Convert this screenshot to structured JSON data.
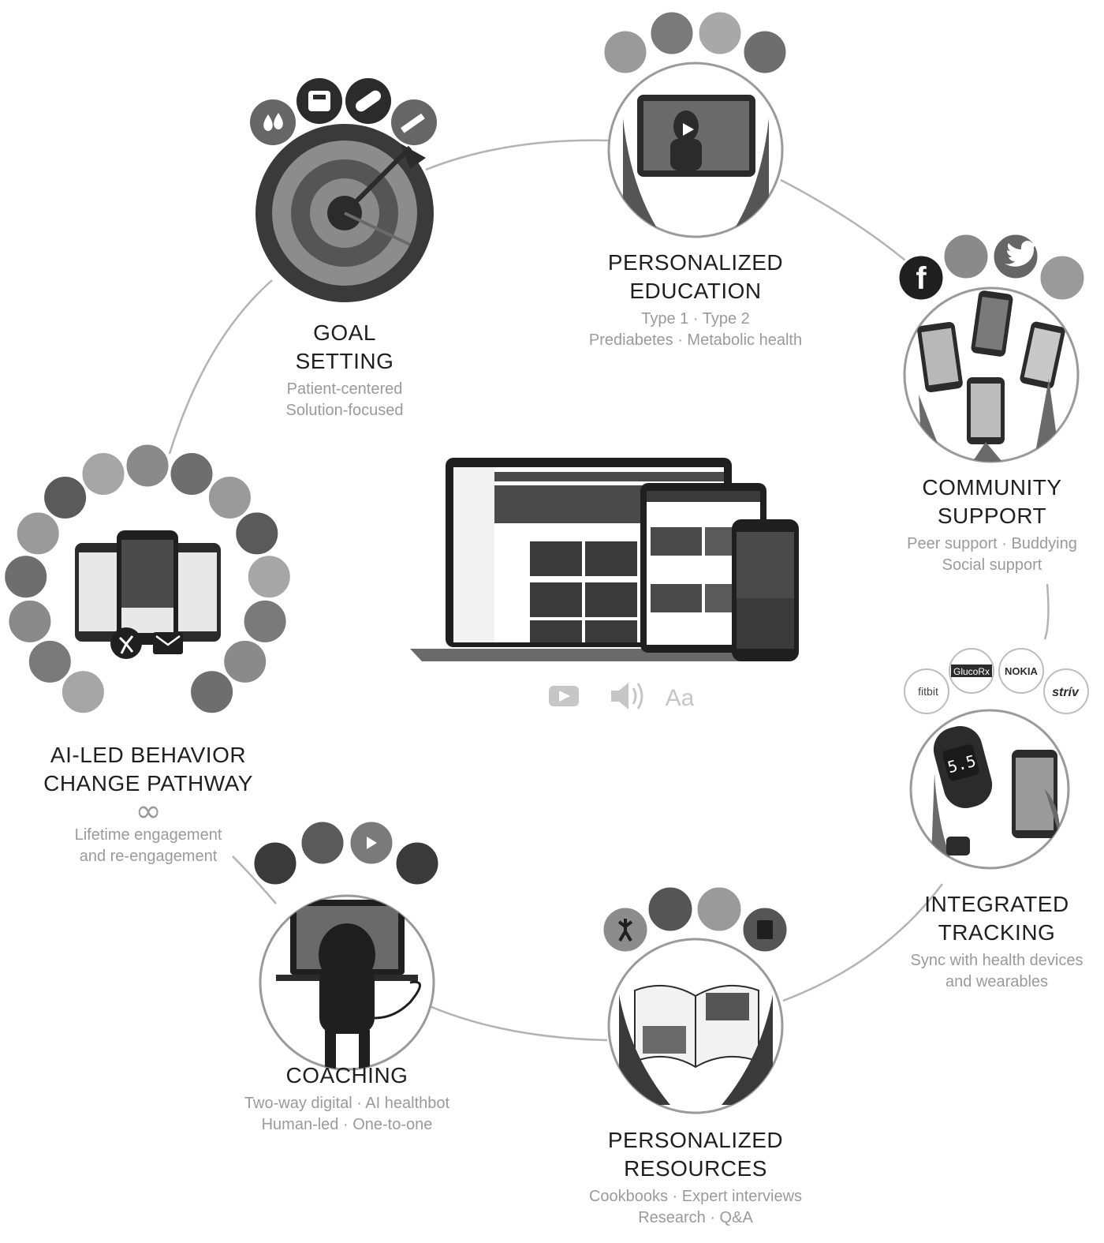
{
  "center_icons": [
    "youtube-icon",
    "speaker-icon",
    "text-size-icon"
  ],
  "center_text_size_glyph": "Aa",
  "nodes": {
    "goal_setting": {
      "title": [
        "GOAL",
        "SETTING"
      ],
      "subtitle": [
        "Patient-centered",
        "Solution-focused"
      ],
      "icons": [
        "blood-drop-icon",
        "scale-icon",
        "pill-icon",
        "syringe-icon"
      ]
    },
    "personalized_education": {
      "title": [
        "PERSONALIZED",
        "EDUCATION"
      ],
      "subtitle": [
        "Type 1 · Type 2",
        "Prediabetes · Metabolic health"
      ]
    },
    "community_support": {
      "title": [
        "COMMUNITY",
        "SUPPORT"
      ],
      "subtitle": [
        "Peer support · Buddying",
        "Social support"
      ],
      "icons": [
        "facebook-icon",
        "twitter-icon"
      ],
      "facebook_glyph": "f"
    },
    "integrated_tracking": {
      "title": [
        "INTEGRATED",
        "TRACKING"
      ],
      "subtitle": [
        "Sync with health devices",
        "and wearables"
      ],
      "brands": [
        "fitbit",
        "GlucoRx",
        "NOKIA",
        "strív"
      ],
      "meter_reading": "5.5"
    },
    "personalized_resources": {
      "title": [
        "PERSONALIZED",
        "RESOURCES"
      ],
      "subtitle": [
        "Cookbooks · Expert interviews",
        "Research · Q&A"
      ]
    },
    "coaching": {
      "title": [
        "COACHING"
      ],
      "subtitle": [
        "Two-way digital · AI healthbot",
        "Human-led · One-to-one"
      ]
    },
    "behavior_change": {
      "title": [
        "AI-LED BEHAVIOR",
        "CHANGE PATHWAY"
      ],
      "subtitle": [
        "Lifetime engagement",
        "and re-engagement"
      ],
      "infinity_glyph": "∞",
      "icons": [
        "infinity-icon",
        "exercise-icon",
        "email-icon"
      ]
    }
  },
  "colors": {
    "dark": "#2b2b2b",
    "mid": "#666666",
    "light": "#bdbdbd",
    "connector": "#b3b3b3",
    "target_outer": "#3a3a3a",
    "target_middle": "#8c8c8c",
    "target_inner": "#555555"
  }
}
